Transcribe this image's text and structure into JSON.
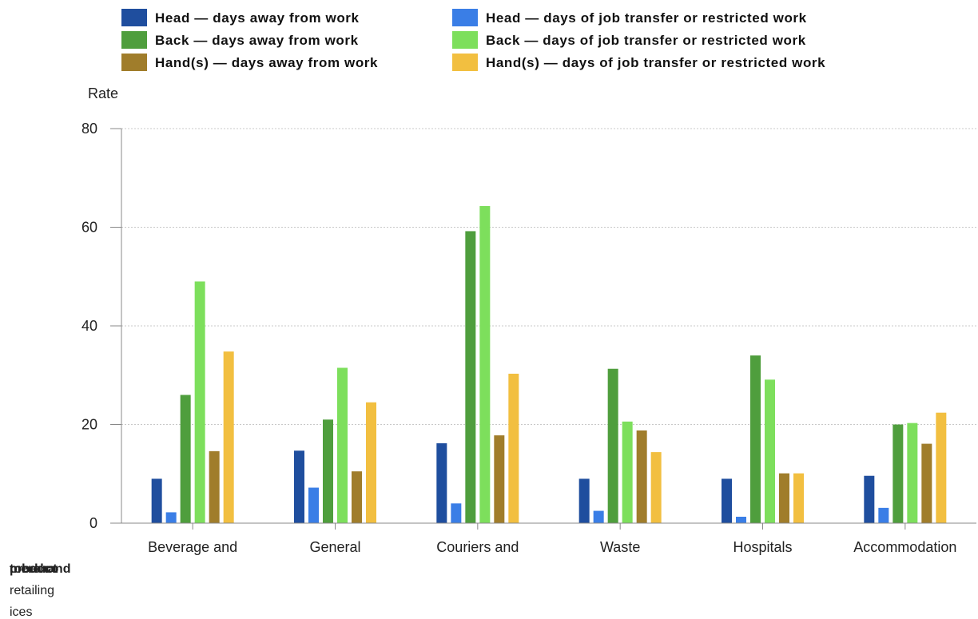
{
  "chart_data": {
    "type": "bar",
    "ylabel": "Rate",
    "ylim": [
      0,
      80
    ],
    "yticks": [
      0,
      20,
      40,
      60,
      80
    ],
    "grid": true,
    "legend_position": "top",
    "categories": [
      "Beverage and",
      "General",
      "Couriers and",
      "Waste",
      "Hospitals",
      "Accommodation"
    ],
    "overflow_labels": [
      {
        "text": "product",
        "bold": true
      },
      {
        "text": "merchand",
        "bold": true
      },
      {
        "text": "tobacco",
        "bold": true
      },
      {
        "text": "retailing",
        "bold": false
      },
      {
        "text": "ices",
        "bold": false
      }
    ],
    "series": [
      {
        "name": "Head — days away from work",
        "color": "#1f4e9e",
        "values": [
          9,
          14.7,
          16.2,
          9,
          9,
          9.6
        ]
      },
      {
        "name": "Head — days of job transfer or restricted work",
        "color": "#3a7ee6",
        "values": [
          2.2,
          7.2,
          4,
          2.5,
          1.3,
          3.1
        ]
      },
      {
        "name": "Back — days away from work",
        "color": "#4f9e3d",
        "values": [
          26,
          21,
          59.2,
          31.3,
          34,
          20
        ]
      },
      {
        "name": "Back — days of job transfer or restricted work",
        "color": "#7ddf5c",
        "values": [
          49,
          31.5,
          64.3,
          20.6,
          29.1,
          20.3
        ]
      },
      {
        "name": "Hand(s) — days away from work",
        "color": "#a07d2b",
        "values": [
          14.6,
          10.5,
          17.8,
          18.8,
          10.1,
          16.1
        ]
      },
      {
        "name": "Hand(s) — days of job transfer or restricted work",
        "color": "#f2bf40",
        "values": [
          34.8,
          24.5,
          30.3,
          14.4,
          10.1,
          22.4
        ]
      }
    ]
  }
}
